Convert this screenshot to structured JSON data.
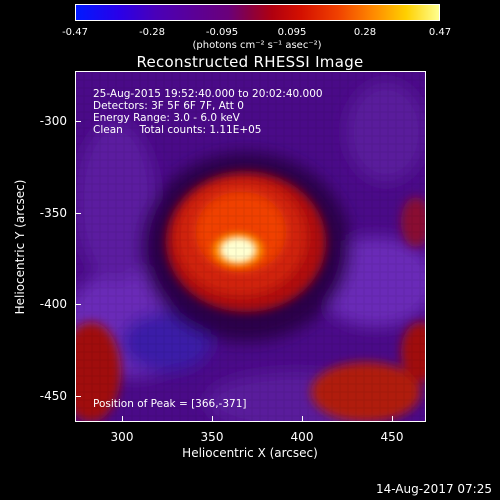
{
  "colorbar": {
    "ticks": [
      "-0.47",
      "-0.28",
      "-0.095",
      "0.095",
      "0.28",
      "0.47"
    ],
    "unit": "(photons cm⁻² s⁻¹ asec⁻²)"
  },
  "title": "Reconstructed RHESSI Image",
  "info": {
    "line1": "25-Aug-2015 19:52:40.000 to 20:02:40.000",
    "line2": "Detectors: 3F 5F 6F 7F, Att 0",
    "line3": "Energy Range: 3.0 - 6.0 keV",
    "line4": "Clean     Total counts: 1.11E+05",
    "peak": "Position of Peak = [366,-371]"
  },
  "axes": {
    "xlabel": "Heliocentric X (arcsec)",
    "ylabel": "Heliocentric Y (arcsec)",
    "xticks": [
      "300",
      "350",
      "400",
      "450"
    ],
    "yticks": [
      "-300",
      "-350",
      "-400",
      "-450"
    ]
  },
  "timestamp": "14-Aug-2017 07:25",
  "colors": {
    "background": "#000000",
    "frame": "#ffffff",
    "text": "#ffffff"
  }
}
